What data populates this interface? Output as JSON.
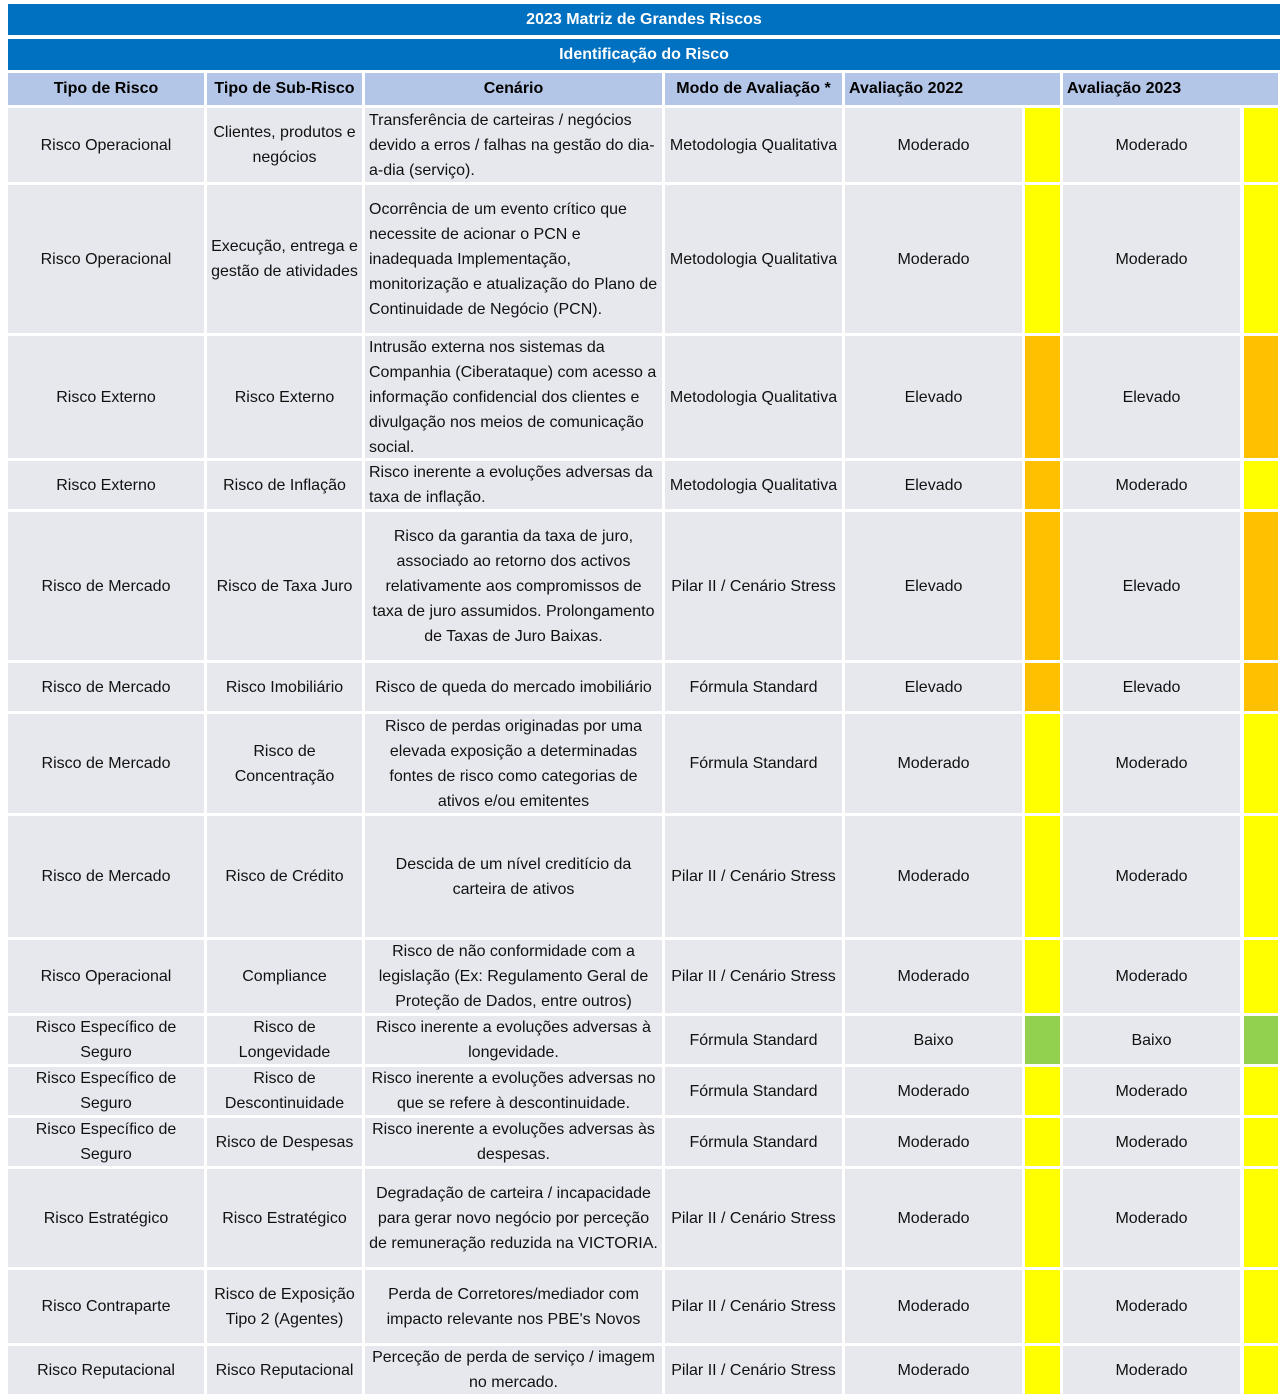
{
  "title": "2023 Matriz de Grandes Riscos",
  "subtitle": "Identificação do Risco",
  "headers": {
    "tipo": "Tipo de Risco",
    "subtipo": "Tipo de Sub-Risco",
    "cenario": "Cenário",
    "modo": "Modo de Avaliação *",
    "aval2022": "Avaliação 2022",
    "aval2023": "Avaliação 2023"
  },
  "level_colors": {
    "Moderado": "#ffff00",
    "Elevado": "#ffc000",
    "Baixo": "#92d050"
  },
  "rows": [
    {
      "tipo": "Risco Operacional",
      "subtipo": "Clientes, produtos e negócios",
      "cenario": "Transferência de carteiras / negócios devido a erros / falhas na gestão do dia-a-dia (serviço).",
      "cenario_align": "left",
      "modo": "Metodologia Qualitativa",
      "a2022": "Moderado",
      "a2023": "Moderado"
    },
    {
      "tipo": "Risco Operacional",
      "subtipo": "Execução, entrega e gestão de atividades",
      "cenario": "Ocorrência de um evento crítico que necessite de acionar o PCN e inadequada Implementação, monitorização e atualização do Plano de Continuidade de Negócio (PCN).",
      "cenario_align": "left",
      "modo": "Metodologia Qualitativa",
      "a2022": "Moderado",
      "a2023": "Moderado"
    },
    {
      "tipo": "Risco Externo",
      "subtipo": "Risco Externo",
      "cenario": "Intrusão externa nos sistemas da Companhia (Ciberataque) com acesso a informação confidencial dos clientes e divulgação nos meios de comunicação social.",
      "cenario_align": "left",
      "modo": "Metodologia Qualitativa",
      "a2022": "Elevado",
      "a2023": "Elevado"
    },
    {
      "tipo": "Risco Externo",
      "subtipo": "Risco de Inflação",
      "cenario": "Risco inerente a evoluções adversas da taxa de inflação.",
      "cenario_align": "left",
      "modo": "Metodologia Qualitativa",
      "a2022": "Elevado",
      "a2023": "Moderado"
    },
    {
      "tipo": "Risco de Mercado",
      "subtipo": "Risco de Taxa Juro",
      "cenario": "Risco da garantia da taxa de juro, associado ao retorno dos activos relativamente aos compromissos de taxa de juro assumidos. Prolongamento de Taxas de Juro Baixas.",
      "cenario_align": "center",
      "modo": "Pilar II / Cenário Stress",
      "a2022": "Elevado",
      "a2023": "Elevado"
    },
    {
      "tipo": "Risco de Mercado",
      "subtipo": "Risco Imobiliário",
      "cenario": "Risco de queda do mercado imobiliário",
      "cenario_align": "center",
      "modo": "Fórmula Standard",
      "a2022": "Elevado",
      "a2023": "Elevado"
    },
    {
      "tipo": "Risco de Mercado",
      "subtipo": "Risco de Concentração",
      "cenario": "Risco de perdas originadas por uma elevada exposição a determinadas fontes de risco como categorias de ativos e/ou emitentes",
      "cenario_align": "center",
      "modo": "Fórmula Standard",
      "a2022": "Moderado",
      "a2023": "Moderado"
    },
    {
      "tipo": "Risco de Mercado",
      "subtipo": "Risco de Crédito",
      "cenario": "Descida de um nível creditício da carteira de ativos",
      "cenario_align": "center",
      "modo": "Pilar II / Cenário Stress",
      "a2022": "Moderado",
      "a2023": "Moderado"
    },
    {
      "tipo": "Risco Operacional",
      "subtipo": "Compliance",
      "cenario": "Risco de não conformidade com a legislação (Ex: Regulamento Geral de Proteção de Dados, entre outros)",
      "cenario_align": "center",
      "modo": "Pilar II / Cenário Stress",
      "a2022": "Moderado",
      "a2023": "Moderado"
    },
    {
      "tipo": "Risco Específico de Seguro",
      "subtipo": "Risco de Longevidade",
      "cenario": "Risco inerente a evoluções adversas à longevidade.",
      "cenario_align": "center",
      "modo": "Fórmula Standard",
      "a2022": "Baixo",
      "a2023": "Baixo"
    },
    {
      "tipo": "Risco Específico de Seguro",
      "subtipo": "Risco de Descontinuidade",
      "cenario": "Risco inerente a evoluções adversas no que se refere à descontinuidade.",
      "cenario_align": "center",
      "modo": "Fórmula Standard",
      "a2022": "Moderado",
      "a2023": "Moderado"
    },
    {
      "tipo": "Risco Específico de Seguro",
      "subtipo": "Risco de Despesas",
      "cenario": "Risco inerente a evoluções adversas às despesas.",
      "cenario_align": "center",
      "modo": "Fórmula Standard",
      "a2022": "Moderado",
      "a2023": "Moderado"
    },
    {
      "tipo": "Risco Estratégico",
      "subtipo": "Risco Estratégico",
      "cenario": "Degradação de carteira / incapacidade para gerar novo negócio por perceção de remuneração reduzida na VICTORIA.",
      "cenario_align": "center",
      "modo": "Pilar II / Cenário Stress",
      "a2022": "Moderado",
      "a2023": "Moderado"
    },
    {
      "tipo": "Risco Contraparte",
      "subtipo": "Risco de Exposição Tipo 2 (Agentes)",
      "cenario": "Perda de Corretores/mediador com impacto relevante nos PBE's Novos",
      "cenario_align": "center",
      "modo": "Pilar II / Cenário Stress",
      "a2022": "Moderado",
      "a2023": "Moderado"
    },
    {
      "tipo": "Risco Reputacional",
      "subtipo": "Risco Reputacional",
      "cenario": "Perceção de perda de serviço / imagem no mercado.",
      "cenario_align": "center",
      "modo": "Pilar II / Cenário Stress",
      "a2022": "Moderado",
      "a2023": "Moderado"
    }
  ]
}
